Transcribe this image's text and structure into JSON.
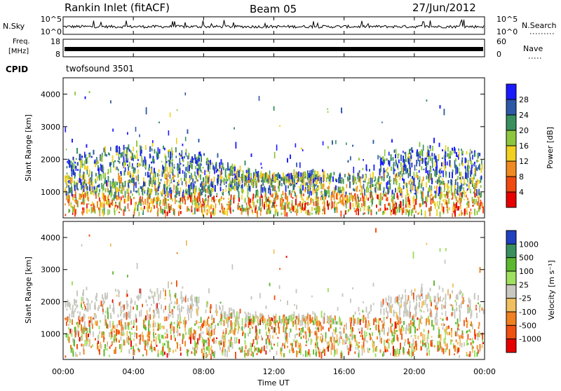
{
  "header": {
    "station": "Rankin Inlet (fitACF)",
    "beam": "Beam 05",
    "date": "27/Jun/2012"
  },
  "nsky_panel": {
    "left_label": "N.Sky",
    "left_ticks": [
      "10^5",
      "10^0"
    ],
    "right_label": "N.Search",
    "right_ticks": [
      "10^5",
      "10^0"
    ]
  },
  "freq_panel": {
    "left_label_1": "Freq.",
    "left_label_2": "[MHz]",
    "left_ticks": [
      "18",
      "8"
    ],
    "right_label": "Nave",
    "right_ticks": [
      "60",
      "0"
    ]
  },
  "cpid": {
    "label": "CPID",
    "value": "twofsound 3501"
  },
  "chart_data": [
    {
      "type": "heatmap",
      "name": "power",
      "ylabel": "Slant Range [km]",
      "yticks": [
        "1000",
        "2000",
        "3000",
        "4000"
      ],
      "ylim": [
        200,
        4500
      ],
      "colorbar_label": "Power [dB]",
      "colorbar_ticks": [
        "4",
        "8",
        "12",
        "16",
        "20",
        "24",
        "28"
      ],
      "colorbar_colors": [
        "#1a1aff",
        "#2e59a6",
        "#3a8f5e",
        "#8cc63f",
        "#f0d020",
        "#f08a20",
        "#f04a10",
        "#e60000"
      ]
    },
    {
      "type": "heatmap",
      "name": "velocity",
      "ylabel": "Slant Range [km]",
      "yticks": [
        "1000",
        "2000",
        "3000",
        "4000"
      ],
      "ylim": [
        200,
        4500
      ],
      "colorbar_label": "Velocity [m s⁻¹]",
      "colorbar_ticks": [
        "1000",
        "500",
        "100",
        "25",
        "-25",
        "-100",
        "-500",
        "-1000"
      ],
      "colorbar_colors": [
        "#2040c0",
        "#3a8f5e",
        "#5cb830",
        "#a0e060",
        "#c8c8c0",
        "#f0c060",
        "#f08020",
        "#f05010",
        "#e60000"
      ]
    }
  ],
  "time_axis": {
    "label": "Time UT",
    "ticks": [
      "00:00",
      "04:00",
      "08:00",
      "12:00",
      "16:00",
      "20:00",
      "00:00"
    ]
  }
}
